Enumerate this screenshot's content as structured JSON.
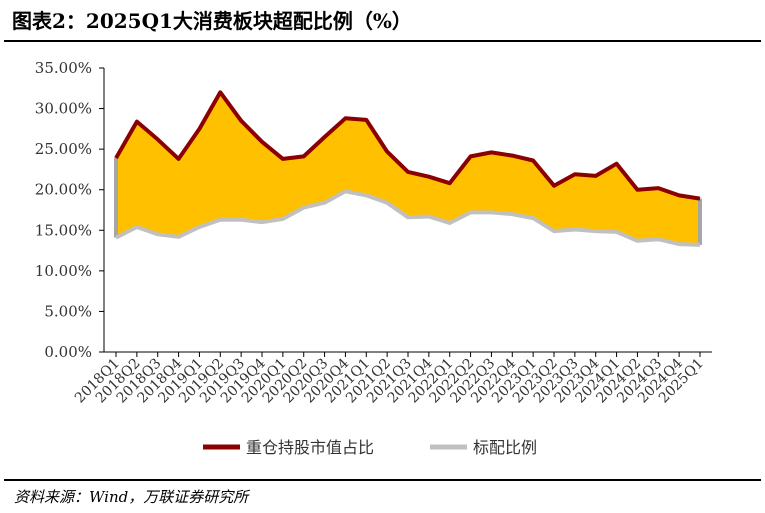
{
  "title": "图表2：2025Q1大消费板块超配比例（%）",
  "source": "资料来源：Wind，万联证券研究所",
  "chart_data": {
    "type": "area",
    "categories": [
      "2018Q1",
      "2018Q2",
      "2018Q3",
      "2018Q4",
      "2019Q1",
      "2019Q2",
      "2019Q3",
      "2019Q4",
      "2020Q1",
      "2020Q2",
      "2020Q3",
      "2020Q4",
      "2021Q1",
      "2021Q2",
      "2021Q3",
      "2021Q4",
      "2022Q1",
      "2022Q2",
      "2022Q3",
      "2022Q4",
      "2023Q1",
      "2023Q2",
      "2023Q3",
      "2023Q4",
      "2024Q1",
      "2024Q2",
      "2024Q3",
      "2024Q4",
      "2025Q1"
    ],
    "series": [
      {
        "name": "重仓持股市值占比",
        "color": "#8B0000",
        "values": [
          23.9,
          28.4,
          26.2,
          23.8,
          27.5,
          32.0,
          28.5,
          25.9,
          23.8,
          24.1,
          26.5,
          28.8,
          28.6,
          24.7,
          22.2,
          21.6,
          20.8,
          24.1,
          24.6,
          24.2,
          23.6,
          20.5,
          21.9,
          21.7,
          23.2,
          20.0,
          20.2,
          19.3,
          18.9
        ]
      },
      {
        "name": "标配比例",
        "color": "#C0C0C0",
        "values": [
          14.1,
          15.4,
          14.5,
          14.2,
          15.4,
          16.3,
          16.3,
          16.0,
          16.4,
          17.8,
          18.4,
          19.8,
          19.3,
          18.4,
          16.6,
          16.7,
          15.9,
          17.2,
          17.2,
          17.0,
          16.5,
          14.9,
          15.1,
          14.9,
          14.8,
          13.7,
          13.9,
          13.3,
          13.2
        ]
      }
    ],
    "fill_color": "#FFC000",
    "ylim": [
      0,
      35
    ],
    "yticks": [
      "0.00%",
      "5.00%",
      "10.00%",
      "15.00%",
      "20.00%",
      "25.00%",
      "30.00%",
      "35.00%"
    ],
    "legend_position": "bottom",
    "grid": false
  }
}
